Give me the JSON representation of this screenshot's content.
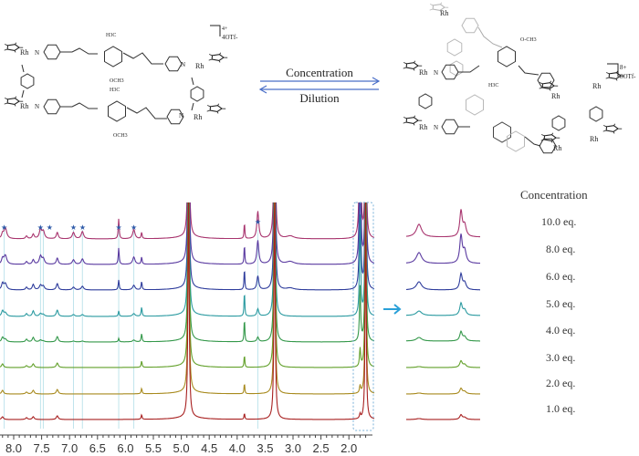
{
  "scheme": {
    "forward_label": "Concentration",
    "reverse_label": "Dilution",
    "arrow_color": "#4a6fc8",
    "left_structure": {
      "metal_label": "Rh",
      "nitrogen_label": "N",
      "oxygen_label": "O",
      "methyl_top": "H3C",
      "methoxy_bottom": "OCH3",
      "charge": "4+",
      "counterion": "4OTf-"
    },
    "right_structure": {
      "metal_label": "Rh",
      "nitrogen_label": "N",
      "methyl": "H3C",
      "methoxy": "O-CH3",
      "charge": "8+",
      "counterion": "8OTf-"
    }
  },
  "chart_data": {
    "type": "line",
    "subtype": "stacked NMR spectra",
    "xlabel": "",
    "ylabel": "",
    "x_axis_reversed": true,
    "xlim": [
      8.25,
      1.6
    ],
    "x_ticks": [
      "8.0",
      "7.5",
      "7.0",
      "6.5",
      "6.0",
      "5.5",
      "5.0",
      "4.5",
      "4.0",
      "3.5",
      "3.0",
      "2.5",
      "2.0"
    ],
    "legend_title": "Concentration",
    "series": [
      {
        "name": "10.0 eq.",
        "color": "#a8346e"
      },
      {
        "name": "8.0 eq.",
        "color": "#5a3aa0"
      },
      {
        "name": "6.0 eq.",
        "color": "#2e3c9c"
      },
      {
        "name": "5.0 eq.",
        "color": "#2a9aa0"
      },
      {
        "name": "4.0 eq.",
        "color": "#34984a"
      },
      {
        "name": "3.0 eq.",
        "color": "#62a02a"
      },
      {
        "name": "2.0 eq.",
        "color": "#a88a1e"
      },
      {
        "name": "1.0 eq.",
        "color": "#a82020"
      }
    ],
    "peaks": [
      {
        "ppm": 8.2,
        "w": 0.02,
        "h": [
          5,
          6,
          7,
          6,
          5,
          4,
          4,
          3
        ]
      },
      {
        "ppm": 8.15,
        "w": 0.03,
        "h": [
          12,
          10,
          7,
          4,
          3,
          0,
          0,
          0
        ]
      },
      {
        "ppm": 7.77,
        "w": 0.02,
        "h": [
          3,
          3,
          3,
          3,
          3,
          2,
          2,
          2
        ]
      },
      {
        "ppm": 7.65,
        "w": 0.02,
        "h": [
          5,
          5,
          6,
          6,
          5,
          4,
          4,
          3
        ]
      },
      {
        "ppm": 7.52,
        "w": 0.025,
        "h": [
          10,
          9,
          5,
          3,
          2,
          0,
          0,
          0
        ]
      },
      {
        "ppm": 7.47,
        "w": 0.025,
        "h": [
          8,
          6,
          4,
          2,
          1,
          0,
          0,
          0
        ]
      },
      {
        "ppm": 7.22,
        "w": 0.02,
        "h": [
          7,
          7,
          7,
          7,
          6,
          5,
          5,
          4
        ]
      },
      {
        "ppm": 6.93,
        "w": 0.025,
        "h": [
          7,
          5,
          3,
          2,
          1,
          0,
          0,
          0
        ]
      },
      {
        "ppm": 6.77,
        "w": 0.025,
        "h": [
          8,
          6,
          4,
          2,
          1,
          0,
          0,
          0
        ]
      },
      {
        "ppm": 6.12,
        "w": 0.01,
        "h": [
          22,
          18,
          11,
          6,
          4,
          0,
          0,
          0
        ]
      },
      {
        "ppm": 5.85,
        "w": 0.025,
        "h": [
          10,
          8,
          5,
          3,
          2,
          0,
          0,
          0
        ]
      },
      {
        "ppm": 5.71,
        "w": 0.01,
        "h": [
          7,
          8,
          9,
          10,
          9,
          7,
          6,
          5
        ]
      },
      {
        "ppm": 4.87,
        "w": 0.012,
        "h": [
          260,
          260,
          260,
          260,
          260,
          260,
          260,
          260
        ]
      },
      {
        "ppm": 3.87,
        "w": 0.008,
        "h": [
          18,
          22,
          24,
          28,
          26,
          14,
          12,
          7
        ]
      },
      {
        "ppm": 3.63,
        "w": 0.02,
        "h": [
          30,
          26,
          15,
          8,
          5,
          0,
          0,
          0
        ]
      },
      {
        "ppm": 3.33,
        "w": 0.012,
        "h": [
          260,
          260,
          260,
          260,
          260,
          260,
          260,
          260
        ]
      },
      {
        "ppm": 3.05,
        "w": 0.08,
        "h": [
          3,
          3,
          2,
          0,
          0,
          0,
          0,
          0
        ]
      },
      {
        "ppm": 1.8,
        "w": 0.012,
        "h": [
          220,
          200,
          160,
          110,
          60,
          20,
          8,
          5
        ]
      },
      {
        "ppm": 1.7,
        "w": 0.01,
        "h": [
          260,
          260,
          260,
          260,
          260,
          260,
          260,
          260
        ]
      }
    ],
    "marked_peaks_ppm": [
      8.17,
      7.52,
      7.47,
      6.93,
      6.77,
      6.12,
      5.85,
      3.63
    ],
    "marker_symbol": "★",
    "inset": {
      "expanded_region": "dashed box (~1.6–1.9 ppm)",
      "peak_a_heights": [
        14,
        12,
        9,
        5,
        4,
        1,
        1,
        1
      ],
      "peak_b_heights": [
        28,
        30,
        17,
        13,
        10,
        7,
        6,
        5
      ]
    }
  }
}
